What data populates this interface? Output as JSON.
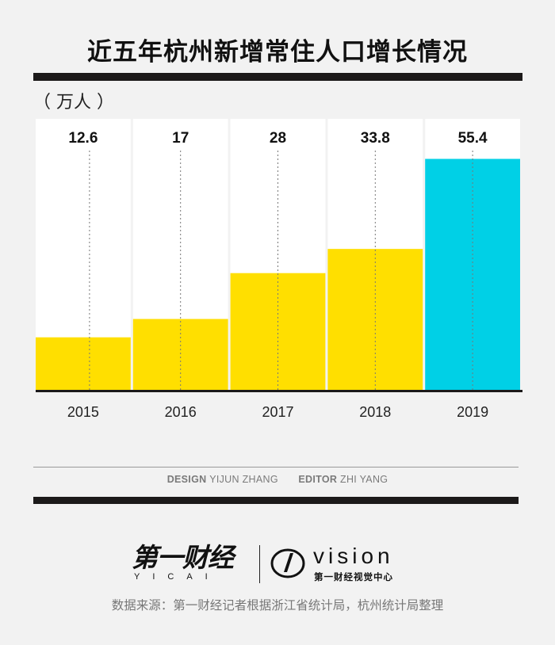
{
  "title": "近五年杭州新增常住人口增长情况",
  "unit": "（ 万人 ）",
  "chart_data": {
    "type": "bar",
    "categories": [
      "2015",
      "2016",
      "2017",
      "2018",
      "2019"
    ],
    "values": [
      12.6,
      17,
      28,
      33.8,
      55.4
    ],
    "value_labels": [
      "12.6",
      "17",
      "28",
      "33.8",
      "55.4"
    ],
    "ylabel": "（ 万人 ）",
    "ylim": [
      0,
      65
    ],
    "grid": false,
    "highlight_category": "2019",
    "colors": {
      "bar": "#ffdf00",
      "highlight": "#00d0e6",
      "panel": "#ffffff",
      "axis": "#1c1a1a",
      "guide": "#777777"
    }
  },
  "credits": {
    "design_label": "DESIGN",
    "design_name": "YIJUN ZHANG",
    "editor_label": "EDITOR",
    "editor_name": "ZHI YANG"
  },
  "logos": {
    "yicai_cn": "第一财经",
    "yicai_en": "YICAI",
    "vision_word": "vision",
    "vision_sub": "第一财经视觉中心"
  },
  "source": "数据来源：第一财经记者根据浙江省统计局，杭州统计局整理"
}
